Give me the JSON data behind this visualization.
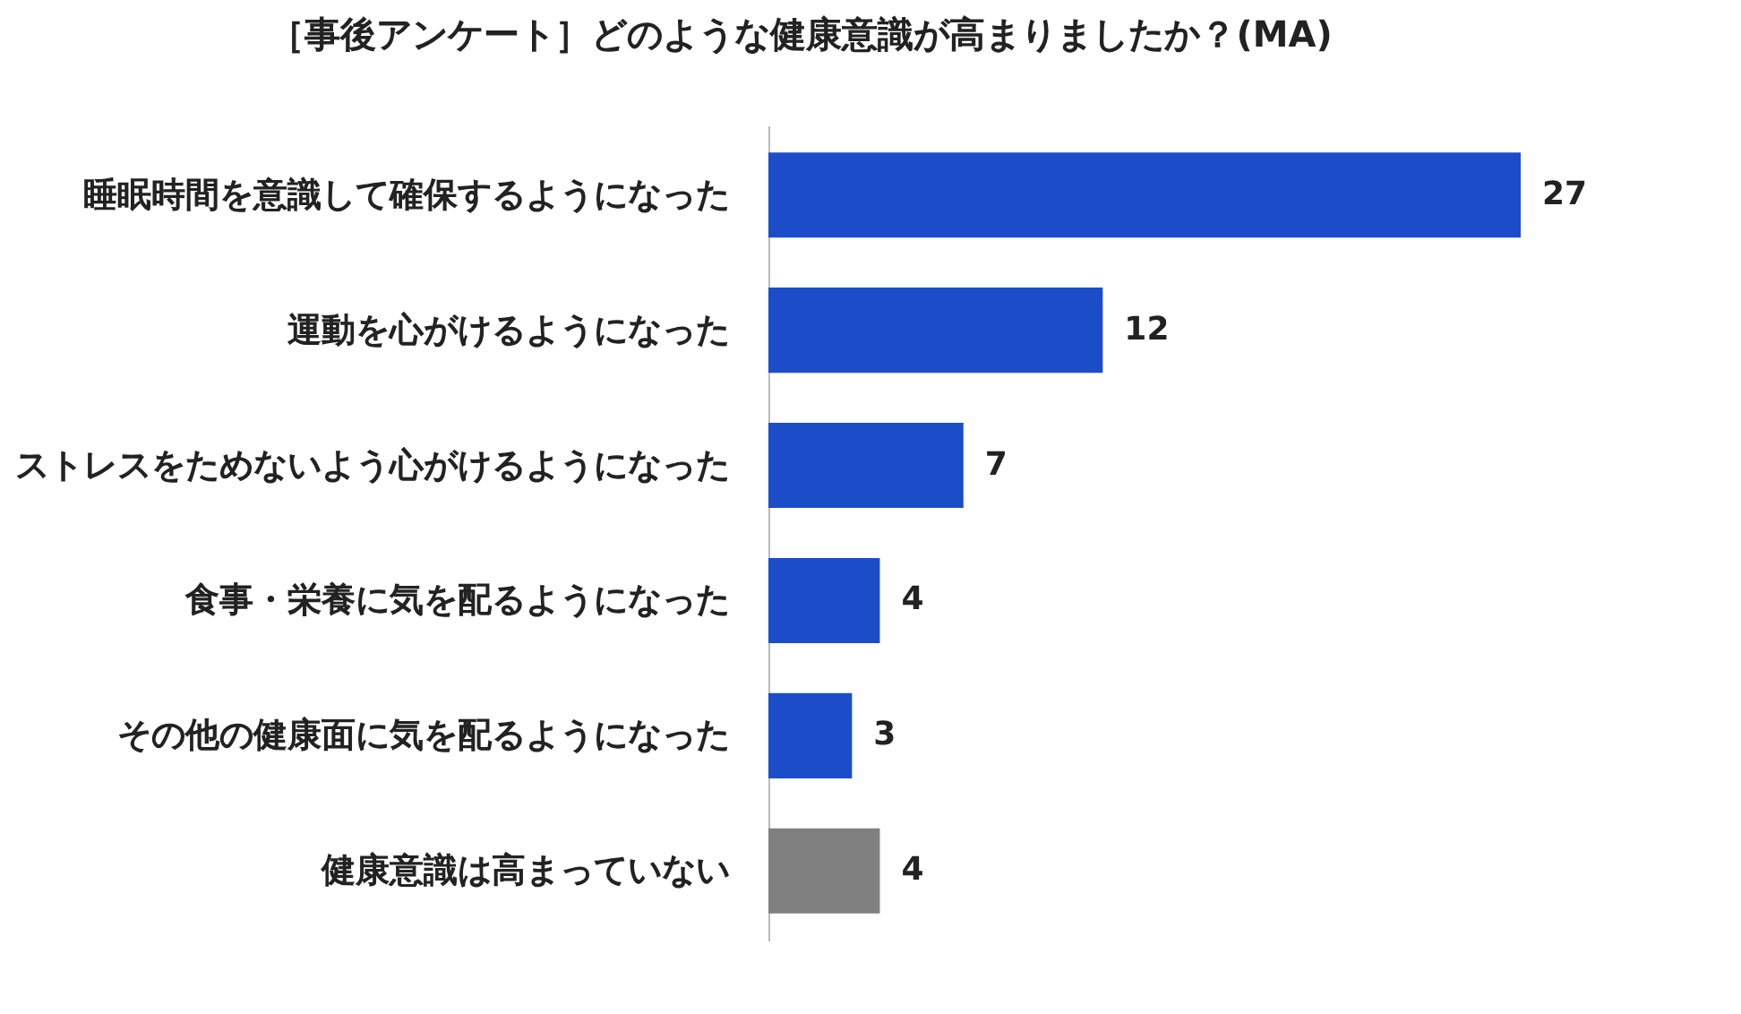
{
  "chart_data": {
    "type": "bar",
    "orientation": "horizontal",
    "title": "［事後アンケート］どのような健康意識が高まりましたか？(MA)",
    "categories": [
      "睡眠時間を意識して確保するようになった",
      "運動を心がけるようになった",
      "ストレスをためないよう心がけるようになった",
      "食事・栄養に気を配るようになった",
      "その他の健康面に気を配るようになった",
      "健康意識は高まっていない"
    ],
    "values": [
      27,
      12,
      7,
      4,
      3,
      4
    ],
    "colors": [
      "#1c4dc9",
      "#1c4dc9",
      "#1c4dc9",
      "#1c4dc9",
      "#1c4dc9",
      "#808080"
    ],
    "data_labels": true,
    "tick_labels": "y"
  }
}
